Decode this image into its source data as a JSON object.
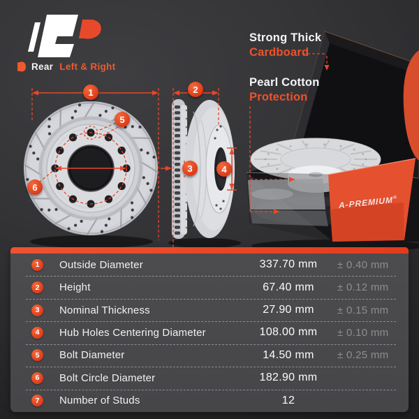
{
  "colors": {
    "accent": "#E8472A",
    "background": "#323235",
    "panel": "#4A4A4D",
    "tolerance_text": "#8E8E92"
  },
  "header": {
    "position": {
      "bold": "Rear",
      "accent": "Left & Right"
    }
  },
  "packaging": {
    "labels": [
      {
        "white": "Strong Thick",
        "accent": "Cardboard"
      },
      {
        "white": "Pearl Cotton",
        "accent": "Protection"
      }
    ],
    "box_brand": "A-PREMIUM",
    "registered": "®"
  },
  "diagram": {
    "callouts": [
      "1",
      "2",
      "3",
      "4",
      "5",
      "6"
    ]
  },
  "specs": {
    "rows": [
      {
        "num": "1",
        "label": "Outside Diameter",
        "value": "337.70 mm",
        "tolerance": "± 0.40 mm"
      },
      {
        "num": "2",
        "label": "Height",
        "value": "67.40 mm",
        "tolerance": "± 0.12 mm"
      },
      {
        "num": "3",
        "label": "Nominal Thickness",
        "value": "27.90 mm",
        "tolerance": "± 0.15 mm"
      },
      {
        "num": "4",
        "label": "Hub Holes Centering Diameter",
        "value": "108.00 mm",
        "tolerance": "± 0.10 mm"
      },
      {
        "num": "5",
        "label": "Bolt Diameter",
        "value": "14.50 mm",
        "tolerance": "± 0.25 mm"
      },
      {
        "num": "6",
        "label": "Bolt Circle Diameter",
        "value": "182.90 mm",
        "tolerance": ""
      },
      {
        "num": "7",
        "label": "Number of Studs",
        "value": "12",
        "tolerance": ""
      }
    ]
  }
}
